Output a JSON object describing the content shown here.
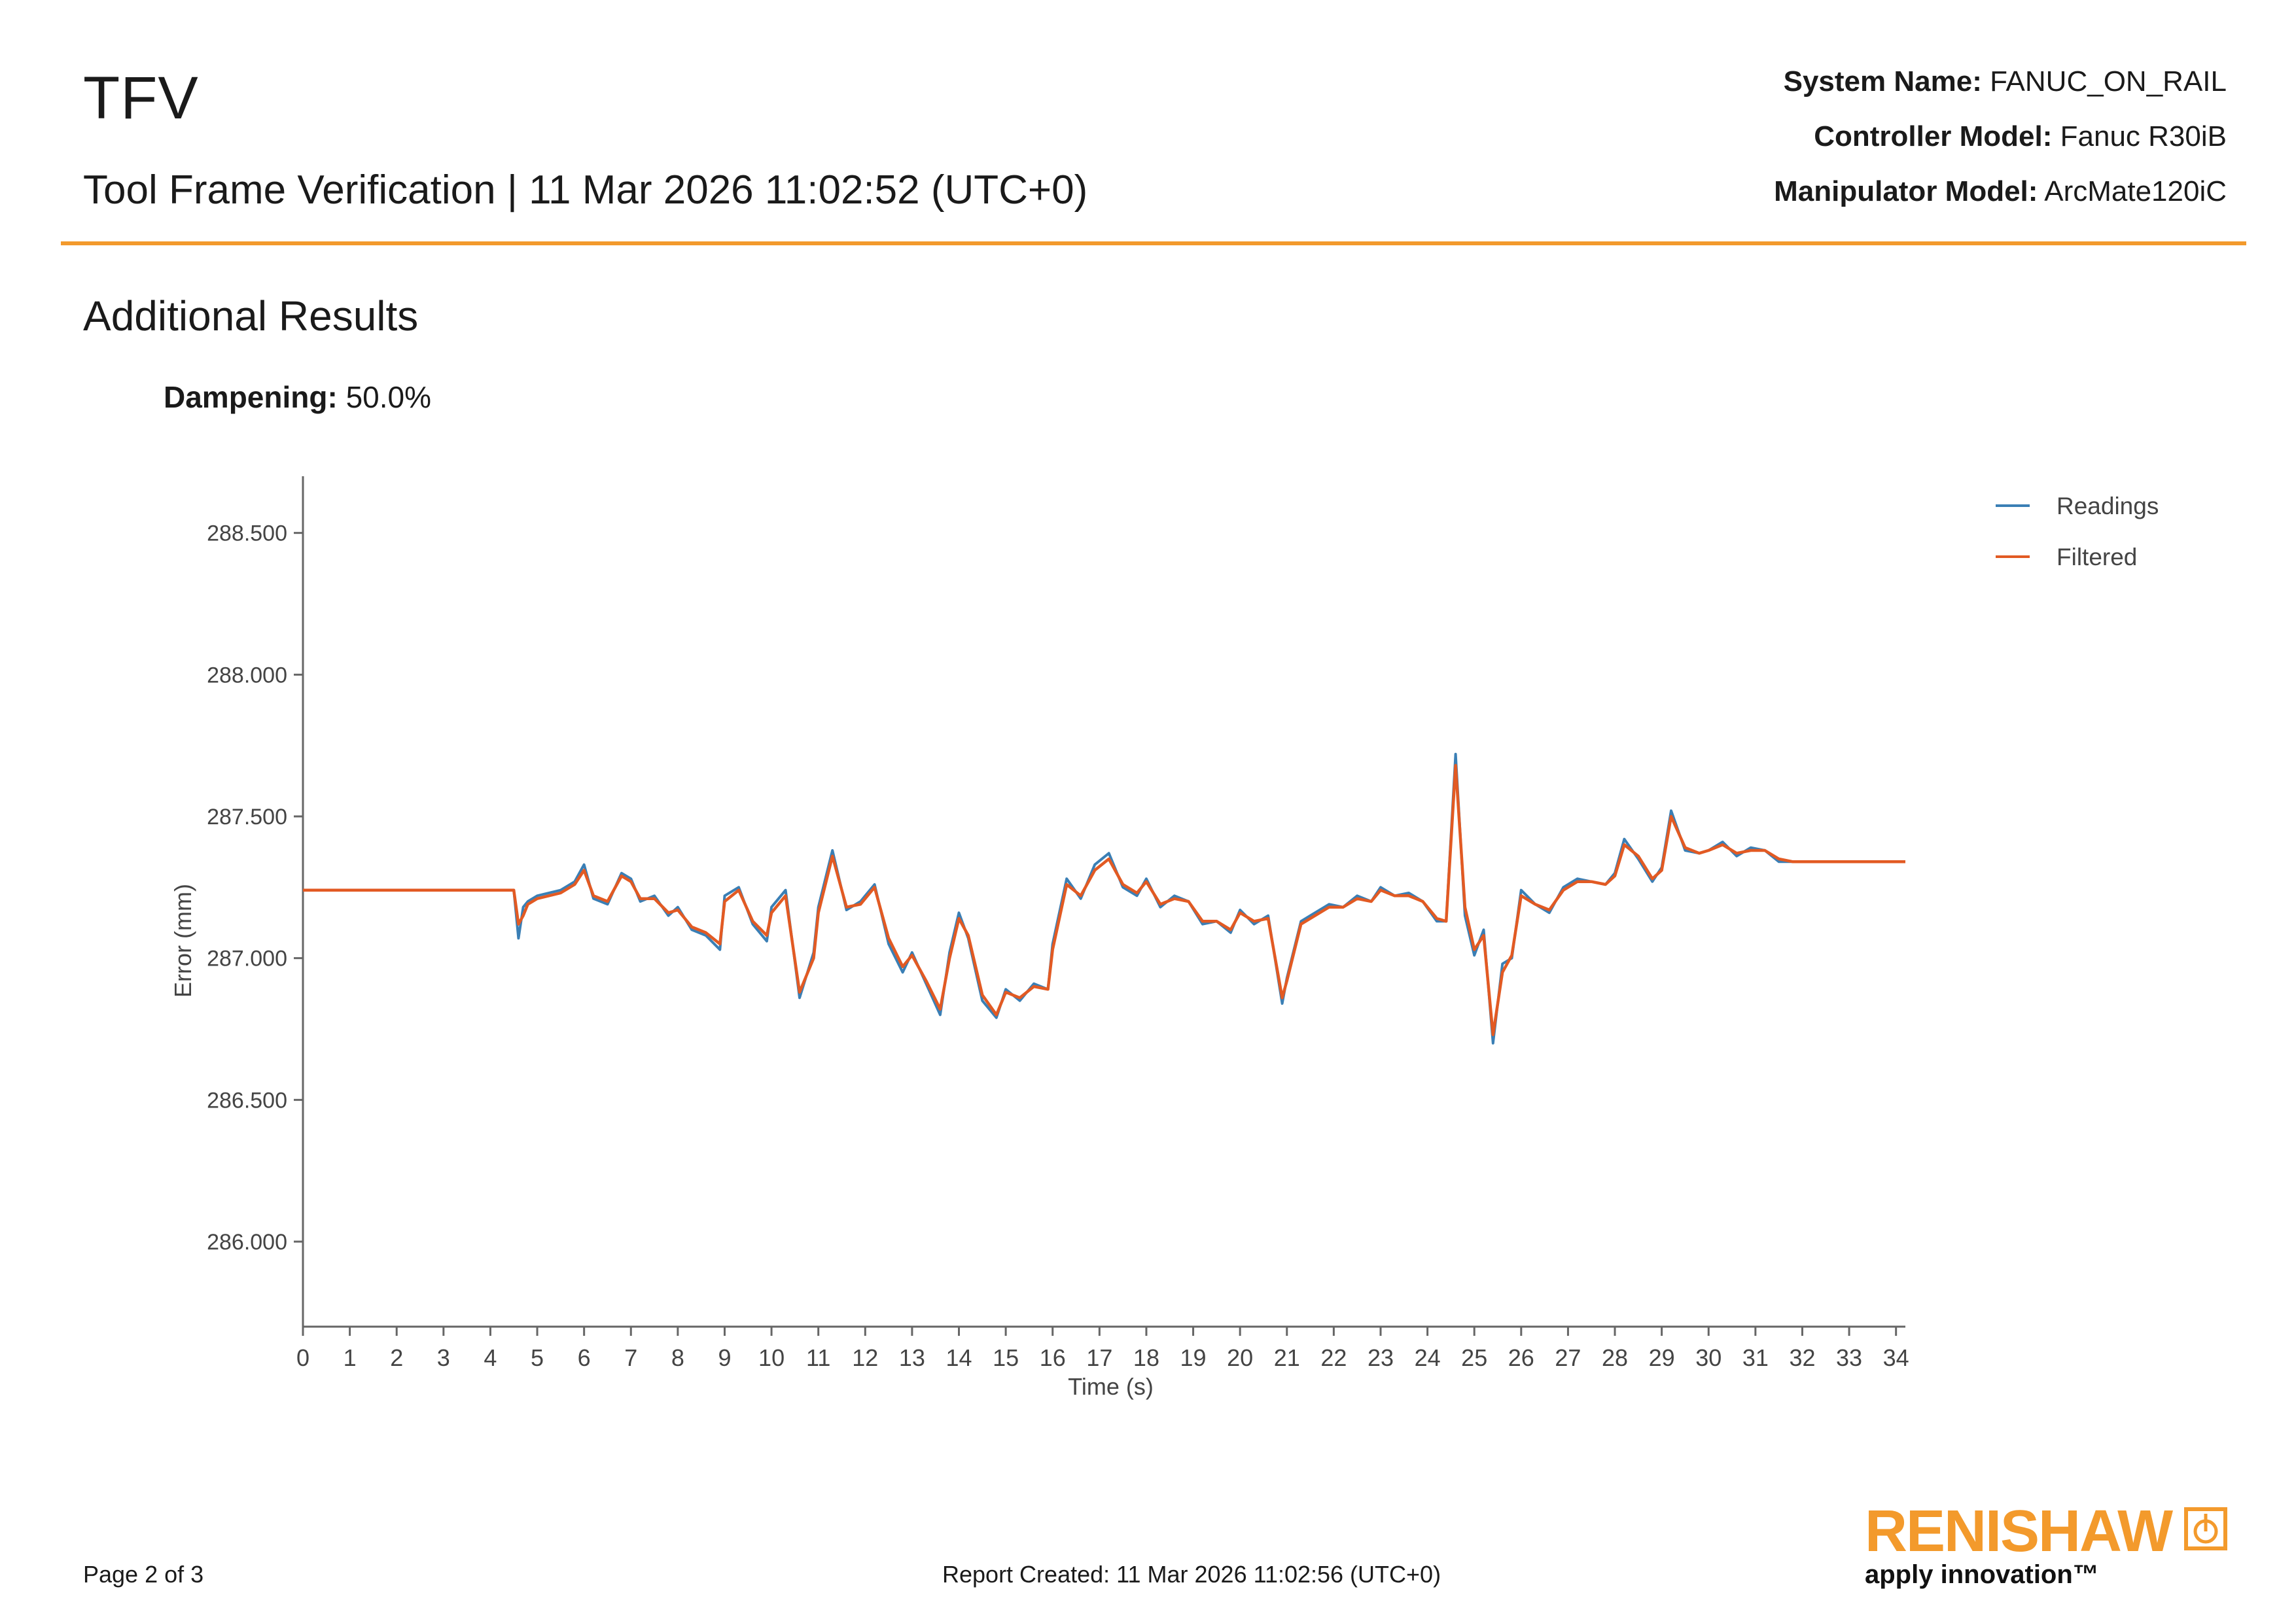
{
  "header": {
    "title": "TFV",
    "subtitle": "Tool Frame Verification | 11 Mar 2026 11:02:52 (UTC+0)",
    "system_name_label": "System Name:",
    "system_name_value": "FANUC_ON_RAIL",
    "controller_label": "Controller Model:",
    "controller_value": "Fanuc R30iB",
    "manipulator_label": "Manipulator Model:",
    "manipulator_value": "ArcMate120iC",
    "rule_color": "#f39a2c"
  },
  "section": {
    "title": "Additional Results",
    "dampening_label": "Dampening:",
    "dampening_value": "50.0%"
  },
  "footer": {
    "page": "Page 2 of 3",
    "created": "Report Created: 11 Mar 2026 11:02:56 (UTC+0)"
  },
  "logo": {
    "wordmark": "RENISHAW",
    "tagline": "apply innovation™",
    "color": "#f39a2c",
    "icon": "renishaw-logo-icon"
  },
  "chart_data": {
    "type": "line",
    "title": "",
    "xlabel": "Time (s)",
    "ylabel": "Error (mm)",
    "xlim": [
      0,
      34.2
    ],
    "ylim": [
      285.7,
      288.7
    ],
    "xticks": [
      0,
      1,
      2,
      3,
      4,
      5,
      6,
      7,
      8,
      9,
      10,
      11,
      12,
      13,
      14,
      15,
      16,
      17,
      18,
      19,
      20,
      21,
      22,
      23,
      24,
      25,
      26,
      27,
      28,
      29,
      30,
      31,
      32,
      33,
      34
    ],
    "xtick_labels": [
      "0",
      "1",
      "2",
      "3",
      "4",
      "5",
      "6",
      "7",
      "8",
      "9",
      "10",
      "11",
      "12",
      "13",
      "14",
      "15",
      "16",
      "17",
      "18",
      "19",
      "20",
      "21",
      "22",
      "23",
      "24",
      "25",
      "26",
      "27",
      "28",
      "29",
      "30",
      "31",
      "32",
      "33",
      "34"
    ],
    "yticks": [
      286.0,
      286.5,
      287.0,
      287.5,
      288.0,
      288.5
    ],
    "ytick_labels": [
      "286.000",
      "286.500",
      "287.000",
      "287.500",
      "288.000",
      "288.500"
    ],
    "grid": false,
    "legend_position": "top-right",
    "x": [
      0,
      4.5,
      4.6,
      4.7,
      4.8,
      5.0,
      5.5,
      5.8,
      6.0,
      6.2,
      6.5,
      6.8,
      7.0,
      7.2,
      7.5,
      7.8,
      8.0,
      8.3,
      8.6,
      8.9,
      9.0,
      9.3,
      9.6,
      9.9,
      10.0,
      10.3,
      10.6,
      10.9,
      11.0,
      11.3,
      11.6,
      11.9,
      12.2,
      12.5,
      12.8,
      13.0,
      13.3,
      13.6,
      13.8,
      14.0,
      14.2,
      14.5,
      14.8,
      15.0,
      15.3,
      15.6,
      15.9,
      16.0,
      16.3,
      16.6,
      16.9,
      17.2,
      17.5,
      17.8,
      18.0,
      18.3,
      18.6,
      18.9,
      19.2,
      19.5,
      19.8,
      20.0,
      20.3,
      20.6,
      20.9,
      21.0,
      21.3,
      21.6,
      21.9,
      22.2,
      22.5,
      22.8,
      23.0,
      23.3,
      23.6,
      23.9,
      24.2,
      24.4,
      24.6,
      24.8,
      25.0,
      25.2,
      25.4,
      25.6,
      25.8,
      26.0,
      26.3,
      26.6,
      26.9,
      27.2,
      27.5,
      27.8,
      28.0,
      28.2,
      28.5,
      28.8,
      29.0,
      29.2,
      29.5,
      29.8,
      30.0,
      30.3,
      30.6,
      30.9,
      31.2,
      31.5,
      31.8,
      32.0,
      32.5,
      33.0,
      33.5,
      34.2
    ],
    "series": [
      {
        "name": "Readings",
        "color": "#3a7fb5",
        "values": [
          287.24,
          287.24,
          287.07,
          287.18,
          287.2,
          287.22,
          287.24,
          287.27,
          287.33,
          287.21,
          287.19,
          287.3,
          287.28,
          287.2,
          287.22,
          287.15,
          287.18,
          287.1,
          287.08,
          287.03,
          287.22,
          287.25,
          287.12,
          287.06,
          287.18,
          287.24,
          286.86,
          287.02,
          287.18,
          287.38,
          287.17,
          287.2,
          287.26,
          287.05,
          286.95,
          287.02,
          286.91,
          286.8,
          287.02,
          287.16,
          287.07,
          286.85,
          286.79,
          286.89,
          286.85,
          286.91,
          286.89,
          287.05,
          287.28,
          287.21,
          287.33,
          287.37,
          287.25,
          287.22,
          287.28,
          287.18,
          287.22,
          287.2,
          287.12,
          287.13,
          287.09,
          287.17,
          287.12,
          287.15,
          286.84,
          286.93,
          287.13,
          287.16,
          287.19,
          287.18,
          287.22,
          287.2,
          287.25,
          287.22,
          287.23,
          287.2,
          287.13,
          287.13,
          287.72,
          287.15,
          287.01,
          287.1,
          286.7,
          286.98,
          287.0,
          287.24,
          287.19,
          287.16,
          287.25,
          287.28,
          287.27,
          287.26,
          287.3,
          287.42,
          287.35,
          287.27,
          287.32,
          287.52,
          287.38,
          287.37,
          287.38,
          287.41,
          287.36,
          287.39,
          287.38,
          287.34,
          287.34,
          287.34,
          287.34,
          287.34,
          287.34,
          287.34
        ]
      },
      {
        "name": "Filtered",
        "color": "#e25a23",
        "values": [
          287.24,
          287.24,
          287.12,
          287.15,
          287.19,
          287.21,
          287.23,
          287.26,
          287.31,
          287.22,
          287.2,
          287.29,
          287.27,
          287.21,
          287.21,
          287.16,
          287.17,
          287.11,
          287.09,
          287.05,
          287.2,
          287.24,
          287.13,
          287.08,
          287.16,
          287.22,
          286.88,
          287.0,
          287.16,
          287.36,
          287.18,
          287.19,
          287.25,
          287.07,
          286.97,
          287.01,
          286.92,
          286.82,
          287.0,
          287.14,
          287.08,
          286.87,
          286.8,
          286.88,
          286.86,
          286.9,
          286.89,
          287.03,
          287.26,
          287.22,
          287.31,
          287.35,
          287.26,
          287.23,
          287.27,
          287.19,
          287.21,
          287.2,
          287.13,
          287.13,
          287.1,
          287.16,
          287.13,
          287.14,
          286.86,
          286.92,
          287.12,
          287.15,
          287.18,
          287.18,
          287.21,
          287.2,
          287.24,
          287.22,
          287.22,
          287.2,
          287.14,
          287.13,
          287.68,
          287.18,
          287.03,
          287.08,
          286.73,
          286.95,
          287.01,
          287.22,
          287.19,
          287.17,
          287.24,
          287.27,
          287.27,
          287.26,
          287.29,
          287.4,
          287.36,
          287.28,
          287.31,
          287.5,
          287.39,
          287.37,
          287.38,
          287.4,
          287.37,
          287.38,
          287.38,
          287.35,
          287.34,
          287.34,
          287.34,
          287.34,
          287.34,
          287.34
        ]
      }
    ]
  }
}
